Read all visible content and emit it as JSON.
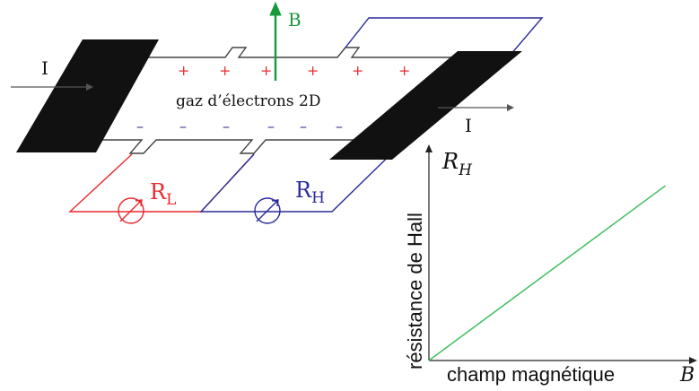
{
  "colors": {
    "red": "#e8292f",
    "blue": "#2b2b9a",
    "green": "#169a3c",
    "plot_line": "#3fbf5f",
    "black": "#111111",
    "gray": "#444444"
  },
  "labels": {
    "B_field": "B",
    "current_in": "I",
    "current_out": "I",
    "gas": "gaz d’électrons 2D",
    "R_L_main": "R",
    "R_L_sub": "L",
    "R_H_main": "R",
    "R_H_sub": "H",
    "plus_signs": [
      "+",
      "+",
      "+",
      "+",
      "+",
      "+"
    ],
    "minus_signs": [
      "–",
      "–",
      "–",
      "–",
      "–",
      "–"
    ]
  },
  "chart_data": {
    "type": "line",
    "xlabel": "champ magnétique",
    "xlabel_symbol": "B",
    "ylabel": "résistance de Hall",
    "ylabel_symbol_main": "R",
    "ylabel_symbol_sub": "H",
    "series": [
      {
        "x": [
          0,
          1
        ],
        "y": [
          0,
          1
        ]
      }
    ],
    "xlim": [
      0,
      1.1
    ],
    "ylim": [
      0,
      1.19
    ],
    "grid": false
  }
}
